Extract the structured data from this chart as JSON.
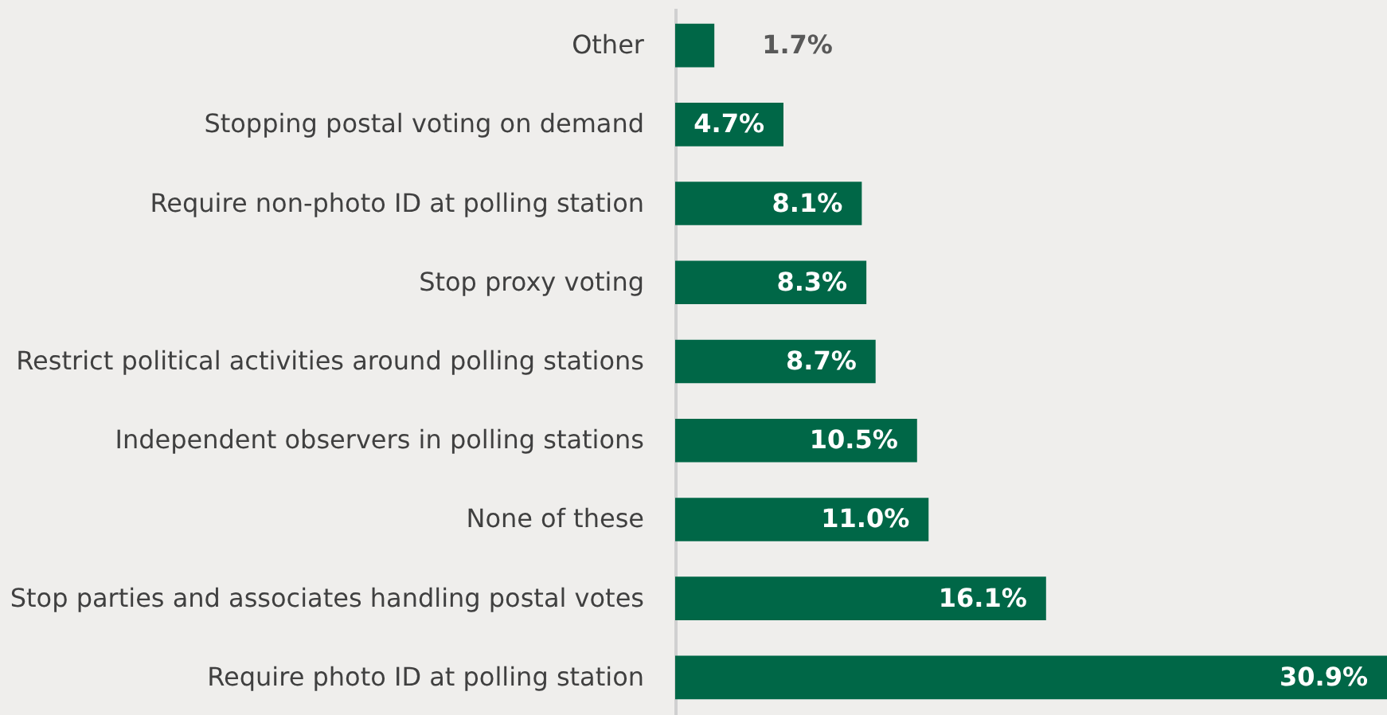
{
  "chart_data": {
    "type": "bar",
    "orientation": "horizontal",
    "grid": false,
    "color": "#006747",
    "categories": [
      "Other",
      "Stopping postal voting on demand",
      "Require non-photo ID at polling station",
      "Stop proxy voting",
      "Restrict political activities around polling stations",
      "Independent observers in polling stations",
      "None of these",
      "Stop parties and associates handling postal votes",
      "Require photo ID at polling station"
    ],
    "values": [
      1.7,
      4.7,
      8.1,
      8.3,
      8.7,
      10.5,
      11.0,
      16.1,
      30.9
    ],
    "value_labels": [
      "1.7%",
      "4.7%",
      "8.1%",
      "8.3%",
      "8.7%",
      "10.5%",
      "11.0%",
      "16.1%",
      "30.9%"
    ]
  }
}
